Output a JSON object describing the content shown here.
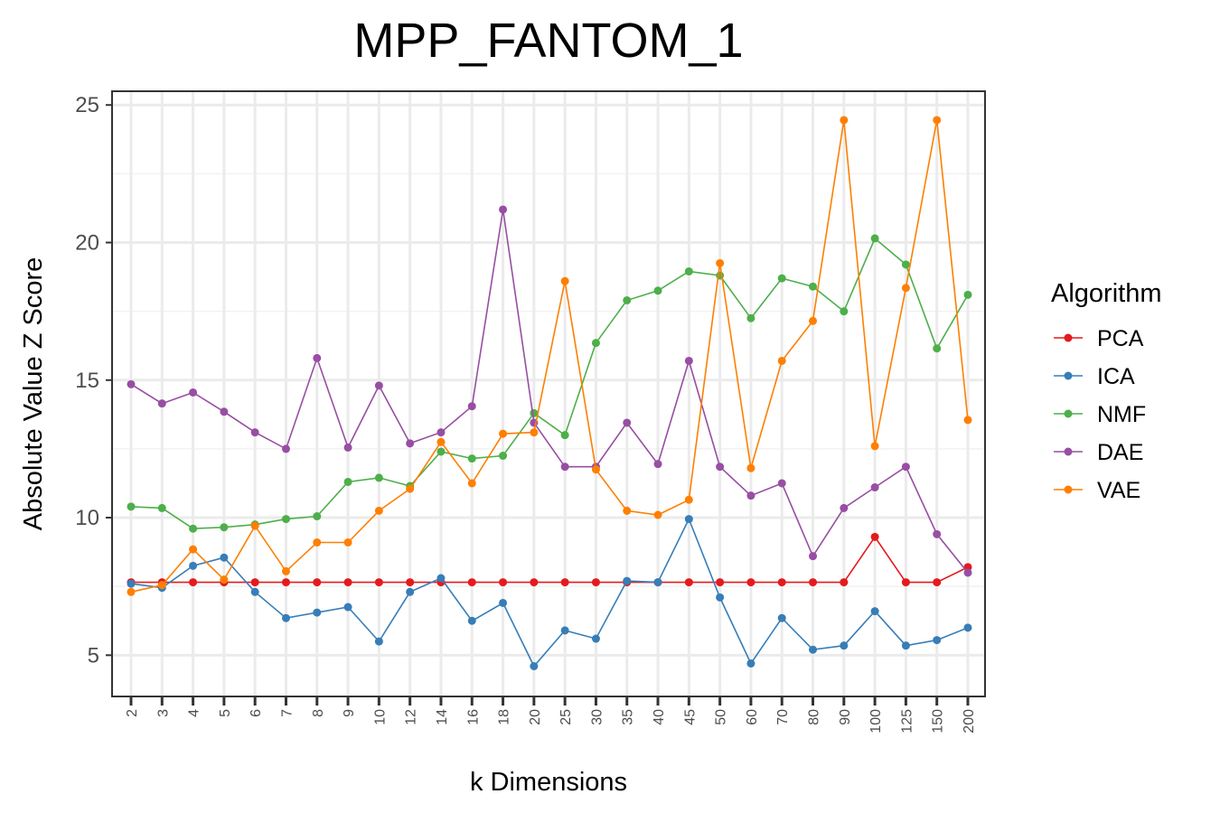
{
  "chart_data": {
    "type": "line",
    "title": "MPP_FANTOM_1",
    "xlabel": "k Dimensions",
    "ylabel": "Absolute Value Z Score",
    "ylim": [
      3.5,
      25.5
    ],
    "yticks": [
      5,
      10,
      15,
      20,
      25
    ],
    "grid": true,
    "legend_position": "right",
    "legend_title": "Algorithm",
    "categories": [
      "2",
      "3",
      "4",
      "5",
      "6",
      "7",
      "8",
      "9",
      "10",
      "12",
      "14",
      "16",
      "18",
      "20",
      "25",
      "30",
      "35",
      "40",
      "45",
      "50",
      "60",
      "70",
      "80",
      "90",
      "100",
      "125",
      "150",
      "200"
    ],
    "series": [
      {
        "name": "PCA",
        "color": "#e41a1c",
        "values": [
          7.65,
          7.65,
          7.65,
          7.65,
          7.65,
          7.65,
          7.65,
          7.65,
          7.65,
          7.65,
          7.65,
          7.65,
          7.65,
          7.65,
          7.65,
          7.65,
          7.65,
          7.65,
          7.65,
          7.65,
          7.65,
          7.65,
          7.65,
          7.65,
          9.3,
          7.65,
          7.65,
          8.2
        ]
      },
      {
        "name": "ICA",
        "color": "#377eb8",
        "values": [
          7.6,
          7.45,
          8.25,
          8.55,
          7.3,
          6.35,
          6.55,
          6.75,
          5.5,
          7.3,
          7.8,
          6.25,
          6.9,
          4.6,
          5.9,
          5.6,
          7.7,
          7.65,
          9.95,
          7.1,
          4.7,
          6.35,
          5.2,
          5.35,
          6.6,
          5.35,
          5.55,
          6.0
        ]
      },
      {
        "name": "NMF",
        "color": "#4daf4a",
        "values": [
          10.4,
          10.35,
          9.6,
          9.65,
          9.75,
          9.95,
          10.05,
          11.3,
          11.45,
          11.15,
          12.4,
          12.15,
          12.25,
          13.8,
          13.0,
          16.35,
          17.9,
          18.25,
          18.95,
          18.8,
          17.25,
          18.7,
          18.4,
          17.5,
          20.15,
          19.2,
          16.15,
          18.1
        ]
      },
      {
        "name": "DAE",
        "color": "#984ea3",
        "values": [
          14.85,
          14.15,
          14.55,
          13.85,
          13.1,
          12.5,
          15.8,
          12.55,
          14.8,
          12.7,
          13.1,
          14.05,
          21.2,
          13.45,
          11.85,
          11.85,
          13.45,
          11.95,
          15.7,
          11.85,
          10.8,
          11.25,
          8.6,
          10.35,
          11.1,
          11.85,
          9.4,
          8.0
        ]
      },
      {
        "name": "VAE",
        "color": "#ff7f00",
        "values": [
          7.3,
          7.55,
          8.85,
          7.75,
          9.7,
          8.05,
          9.1,
          9.1,
          10.25,
          11.05,
          12.75,
          11.25,
          13.05,
          13.1,
          18.6,
          11.75,
          10.25,
          10.1,
          10.65,
          19.25,
          11.8,
          15.7,
          17.15,
          24.45,
          12.6,
          18.35,
          24.45,
          13.55
        ]
      }
    ]
  }
}
